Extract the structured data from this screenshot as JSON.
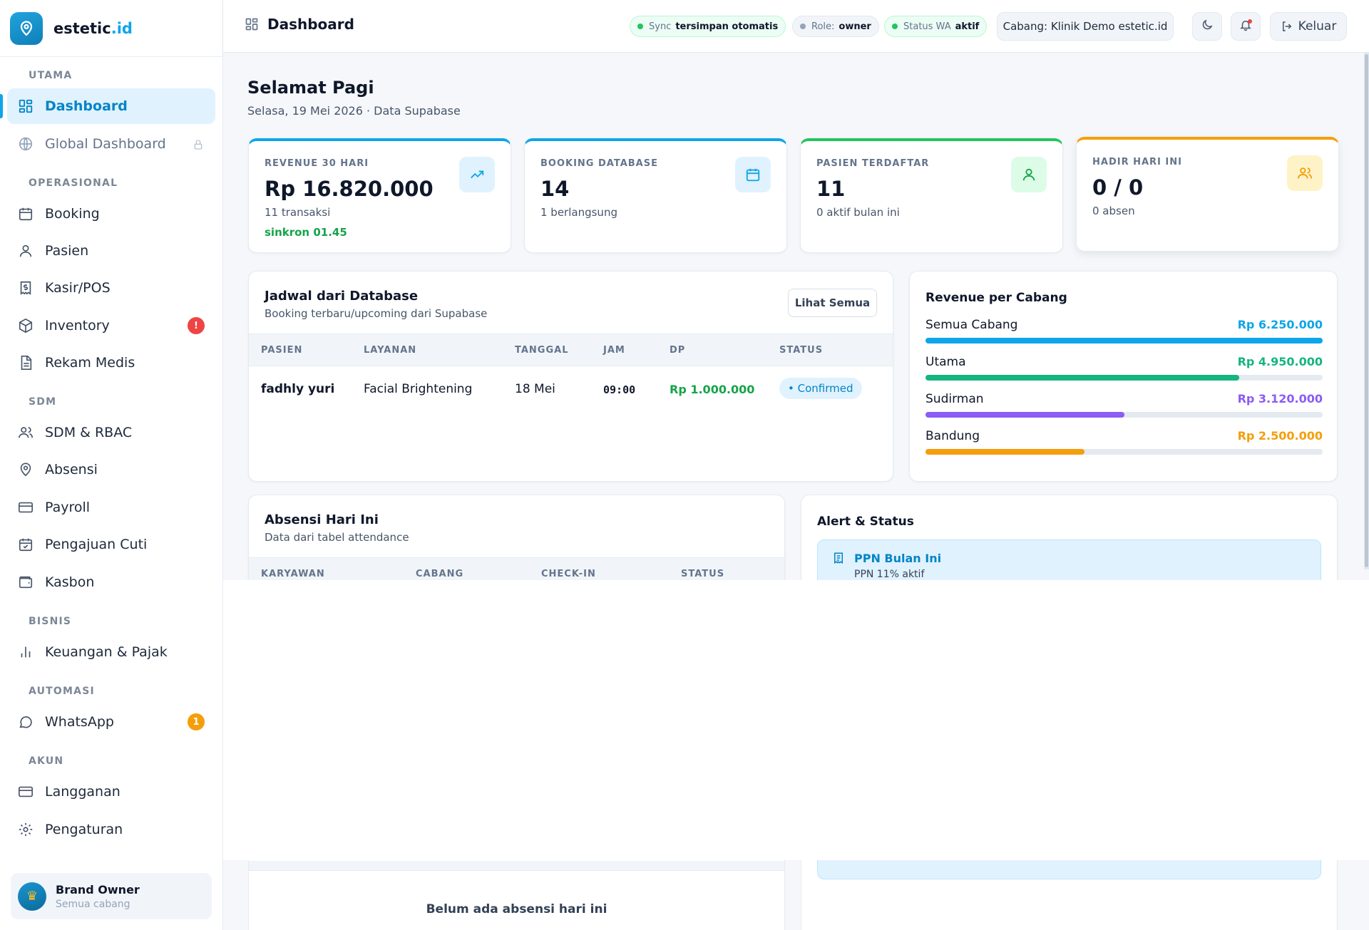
{
  "brand": {
    "name": "estetic",
    "tld": ".id"
  },
  "sidebar": {
    "sections": {
      "utama": "UTAMA",
      "operasional": "OPERASIONAL",
      "sdm": "SDM",
      "bisnis": "BISNIS",
      "automasi": "AUTOMASI",
      "akun": "AKUN"
    },
    "items": {
      "dashboard": "Dashboard",
      "global_dashboard": "Global Dashboard",
      "booking": "Booking",
      "pasien": "Pasien",
      "kasir": "Kasir/POS",
      "inventory": "Inventory",
      "inventory_badge": "!",
      "rekam_medis": "Rekam Medis",
      "sdm_rbac": "SDM & RBAC",
      "absensi": "Absensi",
      "payroll": "Payroll",
      "cuti": "Pengajuan Cuti",
      "kasbon": "Kasbon",
      "keuangan": "Keuangan & Pajak",
      "whatsapp": "WhatsApp",
      "whatsapp_badge": "1",
      "langganan": "Langganan",
      "pengaturan": "Pengaturan"
    },
    "user": {
      "name": "Brand Owner",
      "scope": "Semua cabang",
      "avatar_icon": "crown-icon"
    }
  },
  "topbar": {
    "title": "Dashboard",
    "sync_key": "Sync",
    "sync_val": "tersimpan otomatis",
    "role_key": "Role:",
    "role_val": "owner",
    "wa_key": "Status WA",
    "wa_val": "aktif",
    "branch": "Cabang: Klinik Demo estetic.id",
    "logout": "Keluar"
  },
  "greeting": {
    "title": "Selamat Pagi",
    "subtitle": "Selasa, 19 Mei 2026 · Data Supabase"
  },
  "kpis": {
    "revenue": {
      "label": "REVENUE 30 HARI",
      "value": "Rp 16.820.000",
      "sub": "11 transaksi",
      "sub2": "sinkron 01.45",
      "accent": "#0ea5e9"
    },
    "booking": {
      "label": "BOOKING DATABASE",
      "value": "14",
      "sub": "1 berlangsung",
      "accent": "#0ea5e9"
    },
    "pasien": {
      "label": "PASIEN TERDAFTAR",
      "value": "11",
      "sub": "0 aktif bulan ini",
      "accent": "#22c55e"
    },
    "hadir": {
      "label": "HADIR HARI INI",
      "value": "0 / 0",
      "sub": "0 absen",
      "accent": "#f59e0b"
    }
  },
  "schedule": {
    "title": "Jadwal dari Database",
    "subtitle": "Booking terbaru/upcoming dari Supabase",
    "see_all": "Lihat Semua",
    "columns": [
      "PASIEN",
      "LAYANAN",
      "TANGGAL",
      "JAM",
      "DP",
      "STATUS"
    ],
    "rows": [
      {
        "pasien": "fadhly yuri",
        "layanan": "Facial Brightening",
        "tanggal": "18 Mei",
        "jam": "09:00",
        "dp": "Rp 1.000.000",
        "status": "• Confirmed"
      }
    ]
  },
  "revenue_branch": {
    "title": "Revenue per Cabang",
    "rows": [
      {
        "name": "Semua Cabang",
        "amount": "Rp 6.250.000",
        "fraction": 1.0,
        "color": "#0ea5e9"
      },
      {
        "name": "Utama",
        "amount": "Rp 4.950.000",
        "fraction": 0.79,
        "color": "#16b57f"
      },
      {
        "name": "Sudirman",
        "amount": "Rp 3.120.000",
        "fraction": 0.5,
        "color": "#8b5cf6"
      },
      {
        "name": "Bandung",
        "amount": "Rp 2.500.000",
        "fraction": 0.4,
        "color": "#f59e0b"
      }
    ]
  },
  "attendance": {
    "title": "Absensi Hari Ini",
    "subtitle": "Data dari tabel attendance",
    "columns": [
      "KARYAWAN",
      "CABANG",
      "CHECK-IN",
      "STATUS"
    ],
    "empty": "Belum ada absensi hari ini"
  },
  "alerts": {
    "title": "Alert & Status",
    "items": [
      {
        "title": "PPN Bulan Ini",
        "sub": "PPN 11% aktif",
        "icon": "receipt-icon"
      }
    ]
  }
}
